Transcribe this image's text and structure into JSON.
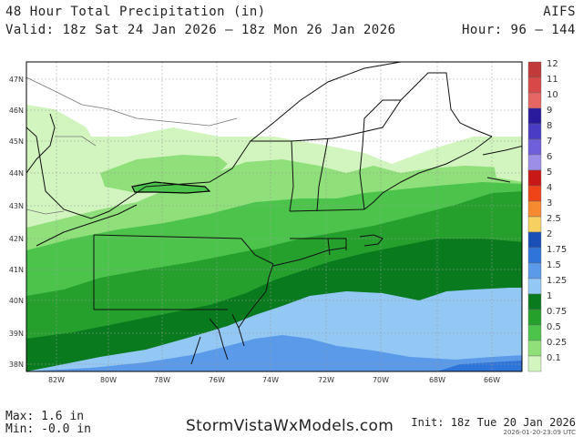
{
  "header": {
    "title": "48 Hour Total Precipitation (in)",
    "valid": "Valid: 18z Sat 24 Jan 2026 – 18z Mon 26 Jan 2026",
    "model": "AIFS",
    "hours": "Hour: 96 – 144"
  },
  "map": {
    "lat_labels": [
      "47N",
      "46N",
      "45N",
      "44N",
      "43N",
      "42N",
      "41N",
      "40N",
      "39N",
      "38N"
    ],
    "lon_labels": [
      "82W",
      "80W",
      "78W",
      "76W",
      "74W",
      "72W",
      "70W",
      "68W",
      "66W"
    ]
  },
  "legend": {
    "levels": [
      {
        "label": "12",
        "color": "#c03a3a"
      },
      {
        "label": "11",
        "color": "#d94848"
      },
      {
        "label": "10",
        "color": "#e66666"
      },
      {
        "label": "9",
        "color": "#2a1a9c"
      },
      {
        "label": "8",
        "color": "#4a3cc4"
      },
      {
        "label": "7",
        "color": "#6f5fd8"
      },
      {
        "label": "6",
        "color": "#9c8ee6"
      },
      {
        "label": "5",
        "color": "#c81818"
      },
      {
        "label": "4",
        "color": "#ee4418"
      },
      {
        "label": "3",
        "color": "#f58a30"
      },
      {
        "label": "2.5",
        "color": "#f6d060"
      },
      {
        "label": "2",
        "color": "#1b4fb8"
      },
      {
        "label": "1.75",
        "color": "#2f74d8"
      },
      {
        "label": "1.5",
        "color": "#5a9ae8"
      },
      {
        "label": "1.25",
        "color": "#93c8f5"
      },
      {
        "label": "1",
        "color": "#0a7a1e"
      },
      {
        "label": "0.75",
        "color": "#25a02d"
      },
      {
        "label": "0.5",
        "color": "#4cc44c"
      },
      {
        "label": "0.25",
        "color": "#8fe07a"
      },
      {
        "label": "0.1",
        "color": "#d2f5bf"
      }
    ]
  },
  "footer": {
    "max": "Max:  1.6 in",
    "min": "Min: -0.0 in",
    "brand": "StormVistaWxModels.com",
    "init": "Init: 18z Tue 20 Jan 2026",
    "stamp": "2026-01-20-23:09 UTC"
  }
}
